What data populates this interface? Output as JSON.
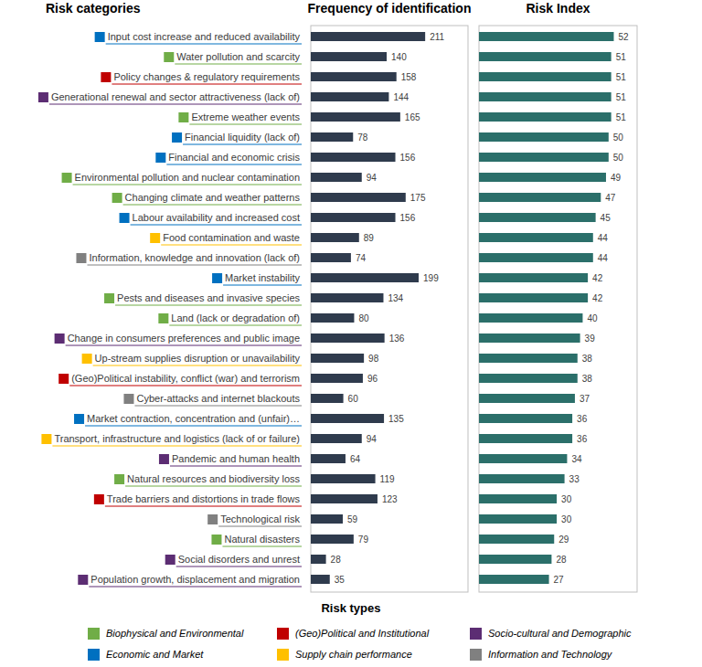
{
  "chart_data": [
    {
      "type": "bar",
      "title": "Frequency of identification",
      "ylabel": "Risk categories",
      "orientation": "horizontal",
      "data_labels": true,
      "tick_labels": false,
      "grid": false,
      "color": "#2f3b4d",
      "xlim": [
        0,
        290
      ],
      "xticks": [],
      "categories": [
        "Input cost increase and reduced availability",
        "Water pollution and scarcity",
        "Policy changes & regulatory requirements",
        "Generational renewal and sector attractiveness (lack of)",
        "Extreme weather events",
        "Financial liquidity (lack of)",
        "Financial and economic crisis",
        "Environmental pollution and nuclear contamination",
        "Changing climate and weather patterns",
        "Labour availability and increased cost",
        "Food contamination and waste",
        "Information, knowledge and innovation (lack of)",
        "Market instability",
        "Pests and diseases and invasive species",
        "Land (lack or degradation of)",
        "Change in consumers preferences and public image",
        "Up-stream supplies disruption or unavailability",
        "(Geo)Political instability, conflict (war) and terrorism",
        "Cyber-attacks and internet blackouts",
        "Market contraction, concentration and (unfair)…",
        "Transport, infrastructure and logistics (lack of or failure)",
        "Pandemic and human health",
        "Natural resources and biodiversity loss",
        "Trade barriers and distortions in trade flows",
        "Technological risk",
        "Natural disasters",
        "Social disorders and unrest",
        "Population growth, displacement and migration"
      ],
      "values": [
        211,
        140,
        158,
        144,
        165,
        78,
        156,
        94,
        175,
        156,
        89,
        74,
        199,
        134,
        80,
        136,
        98,
        96,
        60,
        135,
        94,
        64,
        119,
        123,
        59,
        79,
        28,
        35
      ]
    },
    {
      "type": "bar",
      "title": "Risk Index",
      "orientation": "horizontal",
      "data_labels": true,
      "tick_labels": false,
      "grid": false,
      "color": "#2b6f6a",
      "xlim": [
        0,
        61
      ],
      "xticks": [],
      "categories": [
        "Input cost increase and reduced availability",
        "Water pollution and scarcity",
        "Policy changes & regulatory requirements",
        "Generational renewal and sector attractiveness (lack of)",
        "Extreme weather events",
        "Financial liquidity (lack of)",
        "Financial and economic crisis",
        "Environmental pollution and nuclear contamination",
        "Changing climate and weather patterns",
        "Labour availability and increased cost",
        "Food contamination and waste",
        "Information, knowledge and innovation (lack of)",
        "Market instability",
        "Pests and diseases and invasive species",
        "Land (lack or degradation of)",
        "Change in consumers preferences and public image",
        "Up-stream supplies disruption or unavailability",
        "(Geo)Political instability, conflict (war) and terrorism",
        "Cyber-attacks and internet blackouts",
        "Market contraction, concentration and (unfair)…",
        "Transport, infrastructure and logistics (lack of or failure)",
        "Pandemic and human health",
        "Natural resources and biodiversity loss",
        "Trade barriers and distortions in trade flows",
        "Technological risk",
        "Natural disasters",
        "Social disorders and unrest",
        "Population growth, displacement and migration"
      ],
      "values": [
        52,
        51,
        51,
        51,
        51,
        50,
        50,
        49,
        47,
        45,
        44,
        44,
        42,
        42,
        40,
        39,
        38,
        38,
        37,
        36,
        36,
        34,
        33,
        30,
        30,
        29,
        28,
        27
      ]
    }
  ],
  "risk_types": {
    "title": "Risk types",
    "types": [
      {
        "name": "Biophysical and Environmental",
        "color": "#70ad47"
      },
      {
        "name": "(Geo)Political and Institutional",
        "color": "#c00000"
      },
      {
        "name": "Socio-cultural and Demographic",
        "color": "#5c2d73"
      },
      {
        "name": "Economic and Market",
        "color": "#0070c0"
      },
      {
        "name": "Supply chain performance",
        "color": "#ffc000"
      },
      {
        "name": "Information and Technology",
        "color": "#808080"
      }
    ],
    "category_types": [
      "Economic and Market",
      "Biophysical and Environmental",
      "(Geo)Political and Institutional",
      "Socio-cultural and Demographic",
      "Biophysical and Environmental",
      "Economic and Market",
      "Economic and Market",
      "Biophysical and Environmental",
      "Biophysical and Environmental",
      "Economic and Market",
      "Supply chain performance",
      "Information and Technology",
      "Economic and Market",
      "Biophysical and Environmental",
      "Biophysical and Environmental",
      "Socio-cultural and Demographic",
      "Supply chain performance",
      "(Geo)Political and Institutional",
      "Information and Technology",
      "Economic and Market",
      "Supply chain performance",
      "Socio-cultural and Demographic",
      "Biophysical and Environmental",
      "(Geo)Political and Institutional",
      "Information and Technology",
      "Biophysical and Environmental",
      "Socio-cultural and Demographic",
      "Socio-cultural and Demographic"
    ]
  }
}
